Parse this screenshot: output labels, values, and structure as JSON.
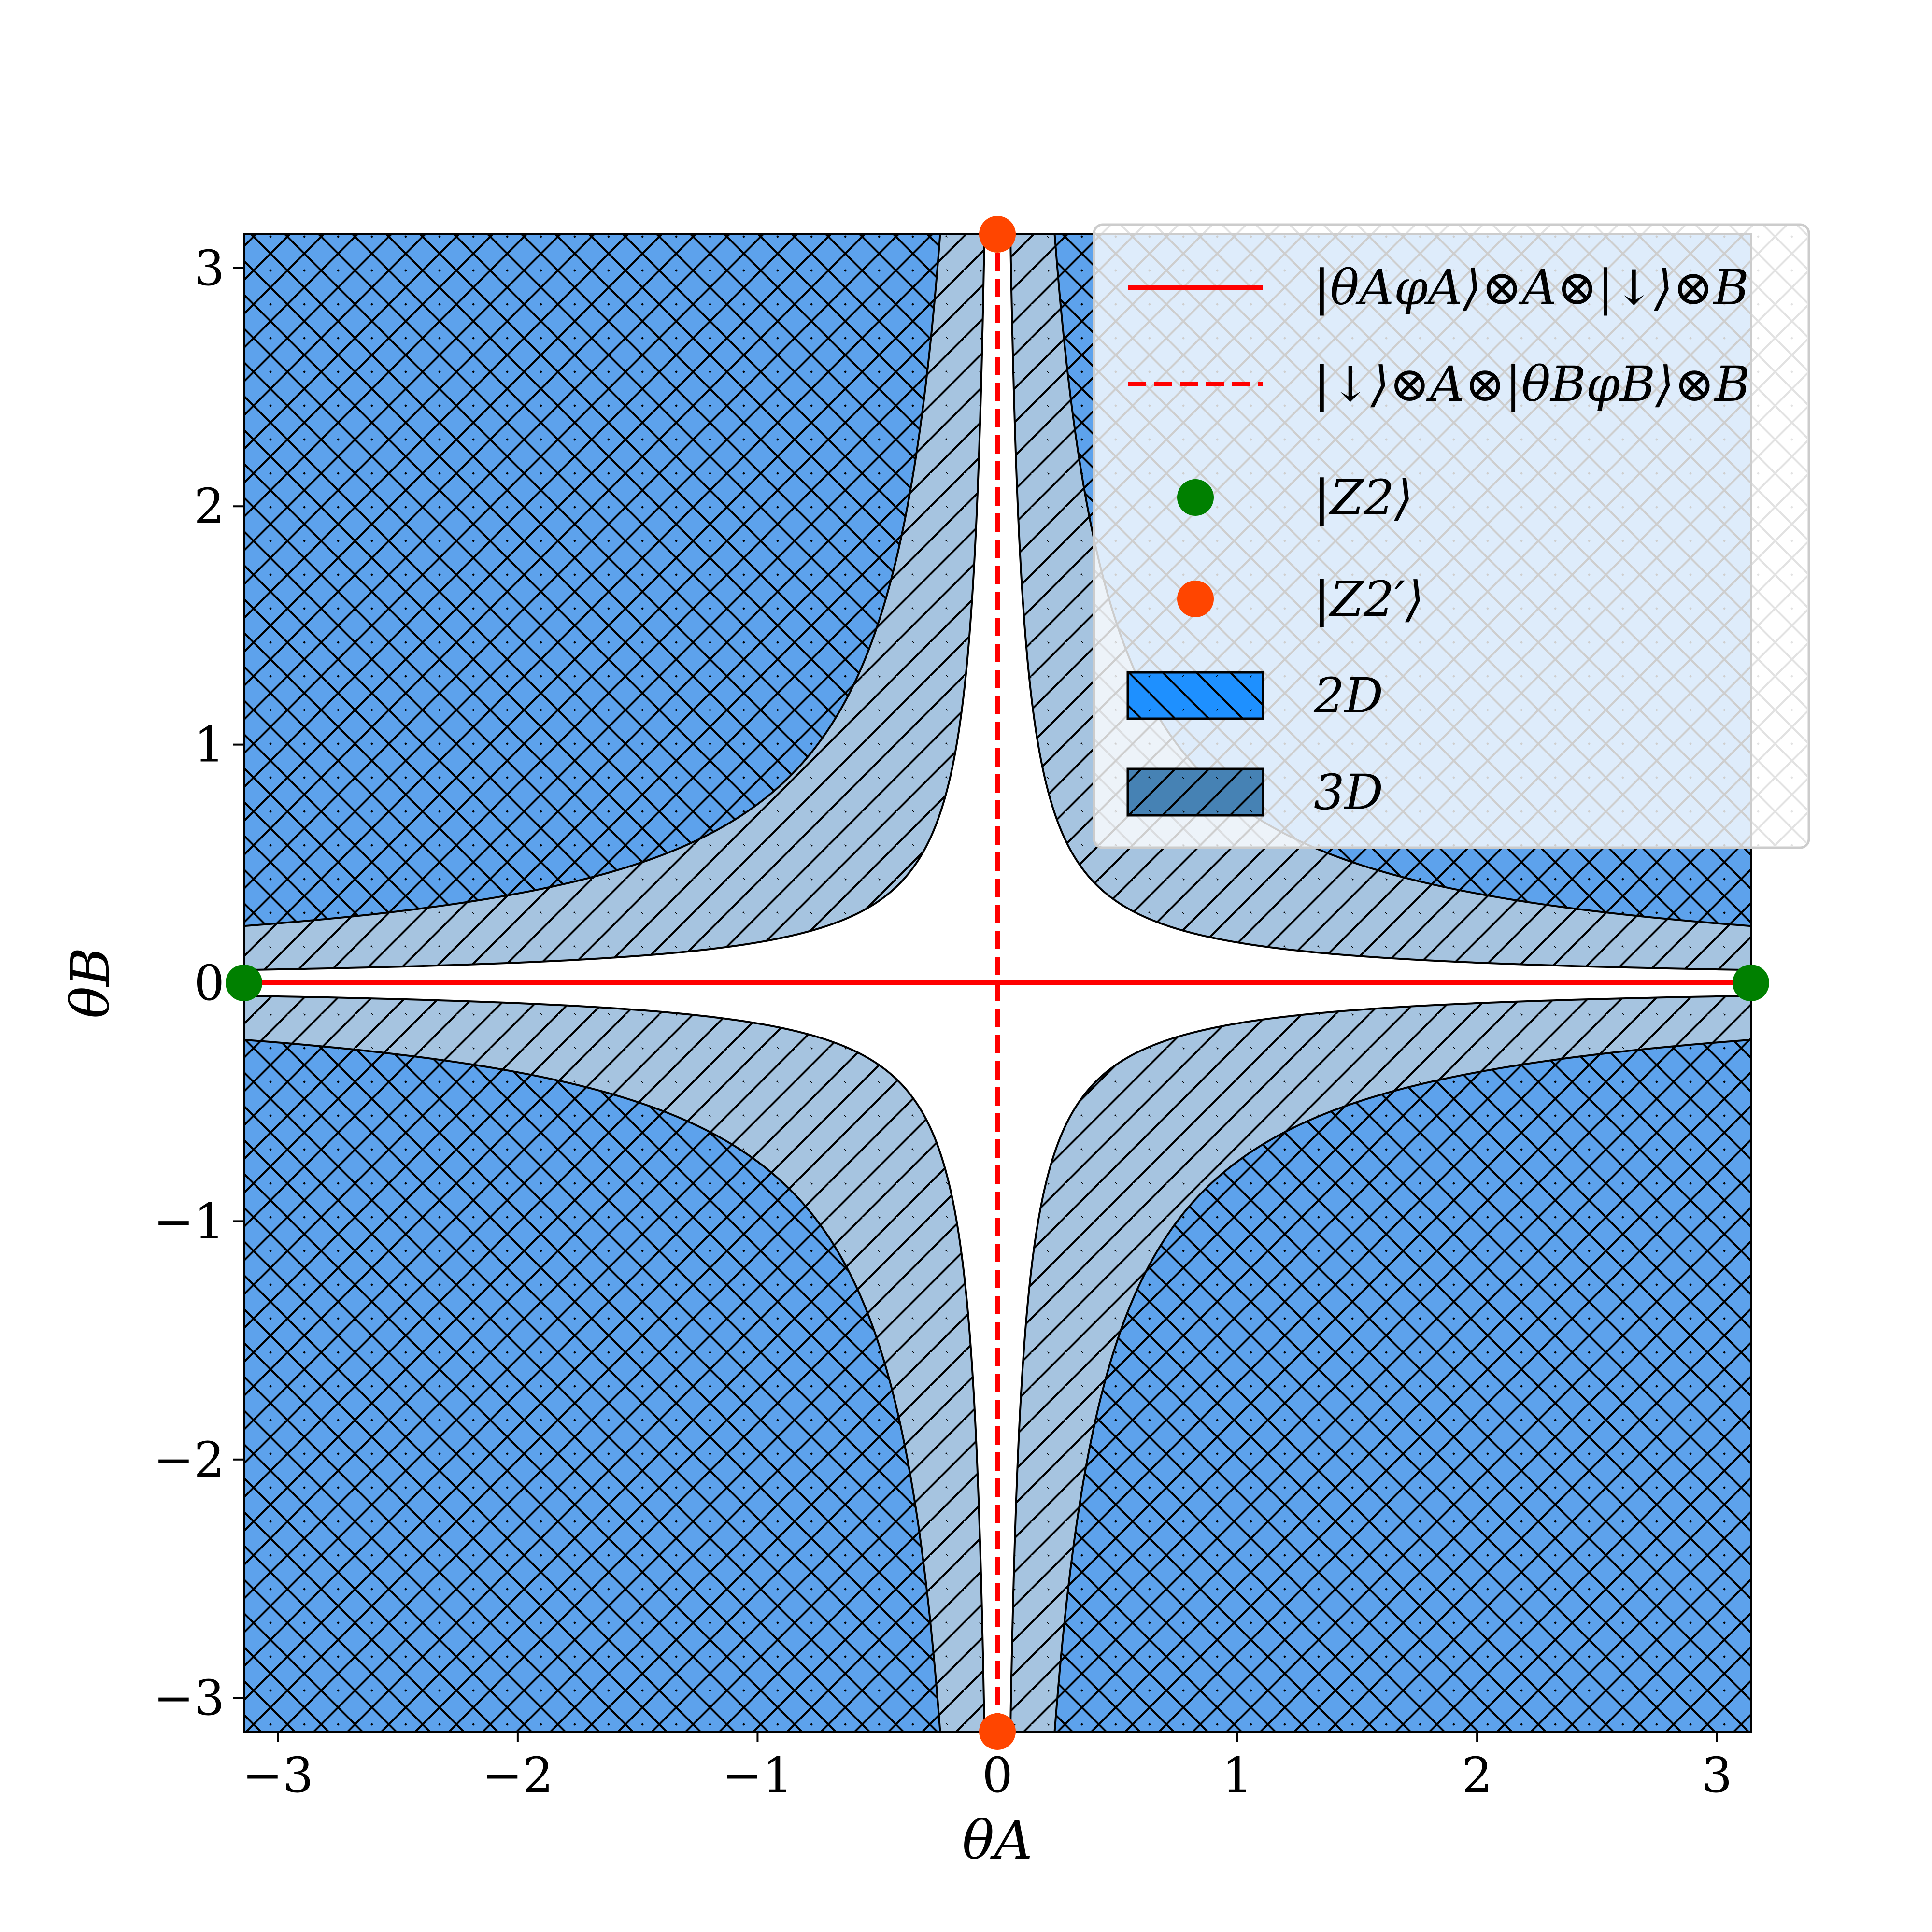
{
  "chart_data": {
    "type": "area",
    "title": "",
    "xlabel": "θA",
    "ylabel": "θB",
    "xlim": [
      -3.1416,
      3.1416
    ],
    "ylim": [
      -3.1416,
      3.1416
    ],
    "xticks": [
      -3,
      -2,
      -1,
      0,
      1,
      2,
      3
    ],
    "yticks": [
      -3,
      -2,
      -1,
      0,
      1,
      2,
      3
    ],
    "xtick_labels": [
      "−3",
      "−2",
      "−1",
      "0",
      "1",
      "2",
      "3"
    ],
    "ytick_labels": [
      "−3",
      "−2",
      "−1",
      "0",
      "1",
      "2",
      "3"
    ],
    "grid": false,
    "legend_position": "top-right",
    "regions": [
      {
        "name": "2D",
        "color": "#1e90ff",
        "hatch": "backslash",
        "boundary": "|θA·θB| = 0.75",
        "boundary_points": [
          [
            0.25,
            3.0
          ],
          [
            0.5,
            1.5
          ],
          [
            0.75,
            1.0
          ],
          [
            1.0,
            0.75
          ],
          [
            1.5,
            0.5
          ],
          [
            3.0,
            0.25
          ]
        ]
      },
      {
        "name": "3D",
        "color": "#4682b4",
        "hatch": "slash",
        "boundary": "|θA·θB| = 0.17",
        "boundary_points": [
          [
            0.055,
            3.0
          ],
          [
            0.1,
            1.7
          ],
          [
            0.2,
            0.85
          ],
          [
            0.5,
            0.34
          ],
          [
            1.0,
            0.17
          ],
          [
            3.0,
            0.055
          ]
        ]
      }
    ],
    "series": [
      {
        "name": "|θAφA⟩⊗A⊗|↓⟩⊗B",
        "style": "solid",
        "color": "#ff0000",
        "x": [
          -3.1416,
          3.1416
        ],
        "y": [
          0,
          0
        ]
      },
      {
        "name": "|↓⟩⊗A⊗|θBφB⟩⊗B",
        "style": "dashed",
        "color": "#ff0000",
        "x": [
          0,
          0
        ],
        "y": [
          -3.1416,
          3.1416
        ]
      }
    ],
    "points": [
      {
        "name": "|Z2⟩",
        "color": "#008000",
        "data": [
          [
            -3.1416,
            0
          ],
          [
            3.1416,
            0
          ]
        ]
      },
      {
        "name": "|Z2′⟩",
        "color": "#ff4500",
        "data": [
          [
            0,
            3.1416
          ],
          [
            0,
            -3.1416
          ]
        ]
      }
    ]
  }
}
